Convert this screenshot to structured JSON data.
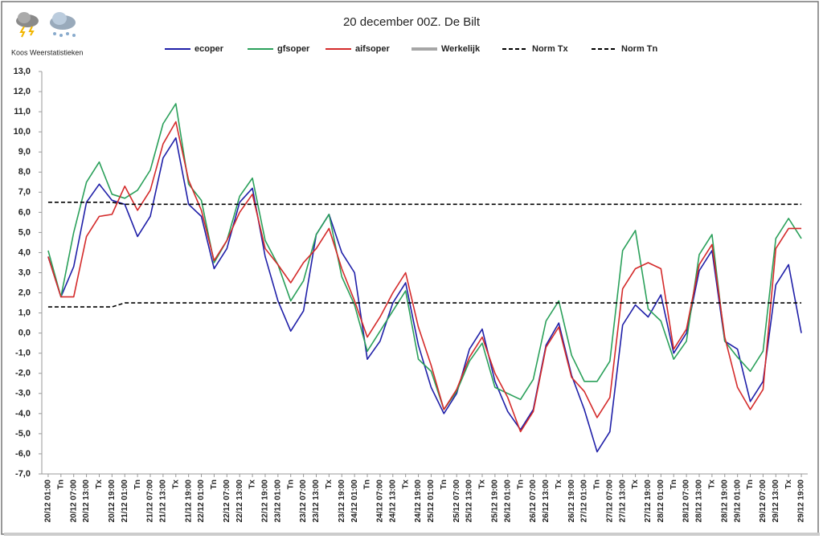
{
  "header": {
    "brand": "Koos Weerstatistieken"
  },
  "chart_data": {
    "type": "line",
    "title": "20 december 00Z. De Bilt",
    "categories": [
      "20/12 01:00",
      "Tn",
      "20/12 07:00",
      "20/12 13:00",
      "Tx",
      "20/12 19:00",
      "21/12 01:00",
      "Tn",
      "21/12 07:00",
      "21/12 13:00",
      "Tx",
      "21/12 19:00",
      "22/12 01:00",
      "Tn",
      "22/12 07:00",
      "22/12 13:00",
      "Tx",
      "22/12 19:00",
      "23/12 01:00",
      "Tn",
      "23/12 07:00",
      "23/12 13:00",
      "Tx",
      "23/12 19:00",
      "24/12 01:00",
      "Tn",
      "24/12 07:00",
      "24/12 13:00",
      "Tx",
      "24/12 19:00",
      "25/12 01:00",
      "Tn",
      "25/12 07:00",
      "25/12 13:00",
      "Tx",
      "25/12 19:00",
      "26/12 01:00",
      "Tn",
      "26/12 07:00",
      "26/12 13:00",
      "Tx",
      "26/12 19:00",
      "27/12 01:00",
      "Tn",
      "27/12 07:00",
      "27/12 13:00",
      "Tx",
      "27/12 19:00",
      "28/12 01:00",
      "Tn",
      "28/12 07:00",
      "28/12 13:00",
      "Tx",
      "28/12 19:00",
      "29/12 01:00",
      "Tn",
      "29/12 07:00",
      "29/12 13:00",
      "Tx",
      "29/12 19:00"
    ],
    "series": [
      {
        "name": "ecoper",
        "color": "#1f1fa8",
        "line_style": "solid",
        "values": [
          3.8,
          1.8,
          3.3,
          6.5,
          7.4,
          6.6,
          6.4,
          4.8,
          5.8,
          8.7,
          9.7,
          6.4,
          5.8,
          3.2,
          4.2,
          6.5,
          7.2,
          3.8,
          1.6,
          0.1,
          1.1,
          4.9,
          5.9,
          4.0,
          3.0,
          -1.3,
          -0.4,
          1.5,
          2.5,
          -0.6,
          -2.7,
          -4.0,
          -3.0,
          -0.8,
          0.2,
          -2.4,
          -3.9,
          -4.8,
          -3.8,
          -0.6,
          0.5,
          -2.1,
          -3.8,
          -5.9,
          -4.9,
          0.4,
          1.4,
          0.8,
          1.9,
          -1.0,
          0.0,
          3.1,
          4.1,
          -0.4,
          -0.8,
          -3.4,
          -2.4,
          2.4,
          3.4,
          0.0
        ]
      },
      {
        "name": "gfsoper",
        "color": "#2aa05a",
        "line_style": "solid",
        "values": [
          4.1,
          1.8,
          5.0,
          7.5,
          8.5,
          6.9,
          6.7,
          7.1,
          8.1,
          10.4,
          11.4,
          7.4,
          6.6,
          3.5,
          4.6,
          6.8,
          7.7,
          4.6,
          3.4,
          1.6,
          2.6,
          4.9,
          5.9,
          2.8,
          1.4,
          -0.9,
          0.1,
          1.1,
          2.1,
          -1.3,
          -1.9,
          -3.8,
          -2.9,
          -1.4,
          -0.5,
          -2.7,
          -3.0,
          -3.3,
          -2.3,
          0.6,
          1.6,
          -1.1,
          -2.4,
          -2.4,
          -1.4,
          4.1,
          5.1,
          1.2,
          0.6,
          -1.3,
          -0.4,
          3.9,
          4.9,
          -0.4,
          -1.2,
          -1.9,
          -0.9,
          4.7,
          5.7,
          4.7
        ]
      },
      {
        "name": "aifsoper",
        "color": "#d42a2a",
        "line_style": "solid",
        "values": [
          3.8,
          1.8,
          1.8,
          4.8,
          5.8,
          5.9,
          7.3,
          6.1,
          7.1,
          9.4,
          10.5,
          7.6,
          6.1,
          3.6,
          4.6,
          6.0,
          6.9,
          4.2,
          3.4,
          2.5,
          3.5,
          4.2,
          5.2,
          3.2,
          1.6,
          -0.2,
          0.8,
          2.0,
          3.0,
          0.3,
          -1.6,
          -3.8,
          -2.8,
          -1.2,
          -0.2,
          -2.0,
          -3.2,
          -4.9,
          -3.9,
          -0.7,
          0.3,
          -2.2,
          -2.9,
          -4.2,
          -3.2,
          2.2,
          3.2,
          3.5,
          3.2,
          -0.8,
          0.2,
          3.4,
          4.4,
          -0.2,
          -2.7,
          -3.8,
          -2.8,
          4.2,
          5.2,
          5.2
        ]
      },
      {
        "name": "Werkelijk",
        "color": "#a6a6a6",
        "line_style": "thick",
        "values": [
          null,
          null,
          null,
          null,
          null,
          null,
          null,
          null,
          null,
          null,
          null,
          null,
          null,
          null,
          null,
          null,
          null,
          null,
          null,
          null,
          null,
          null,
          null,
          null,
          null,
          null,
          null,
          null,
          null,
          null,
          null,
          null,
          null,
          null,
          null,
          null,
          null,
          null,
          null,
          null,
          null,
          null,
          null,
          null,
          null,
          null,
          null,
          null,
          null,
          null,
          null,
          null,
          null,
          null,
          null,
          null,
          null,
          null,
          null,
          null
        ]
      },
      {
        "name": "Norm Tx",
        "color": "#000000",
        "line_style": "dashed",
        "values": [
          6.5,
          6.5,
          6.5,
          6.5,
          6.5,
          6.5,
          6.4,
          6.4,
          6.4,
          6.4,
          6.4,
          6.4,
          6.4,
          6.4,
          6.4,
          6.4,
          6.4,
          6.4,
          6.4,
          6.4,
          6.4,
          6.4,
          6.4,
          6.4,
          6.4,
          6.4,
          6.4,
          6.4,
          6.4,
          6.4,
          6.4,
          6.4,
          6.4,
          6.4,
          6.4,
          6.4,
          6.4,
          6.4,
          6.4,
          6.4,
          6.4,
          6.4,
          6.4,
          6.4,
          6.4,
          6.4,
          6.4,
          6.4,
          6.4,
          6.4,
          6.4,
          6.4,
          6.4,
          6.4,
          6.4,
          6.4,
          6.4,
          6.4,
          6.4,
          6.4
        ]
      },
      {
        "name": "Norm Tn",
        "color": "#000000",
        "line_style": "dashed",
        "values": [
          1.3,
          1.3,
          1.3,
          1.3,
          1.3,
          1.3,
          1.5,
          1.5,
          1.5,
          1.5,
          1.5,
          1.5,
          1.5,
          1.5,
          1.5,
          1.5,
          1.5,
          1.5,
          1.5,
          1.5,
          1.5,
          1.5,
          1.5,
          1.5,
          1.5,
          1.5,
          1.5,
          1.5,
          1.5,
          1.5,
          1.5,
          1.5,
          1.5,
          1.5,
          1.5,
          1.5,
          1.5,
          1.5,
          1.5,
          1.5,
          1.5,
          1.5,
          1.5,
          1.5,
          1.5,
          1.5,
          1.5,
          1.5,
          1.5,
          1.5,
          1.5,
          1.5,
          1.5,
          1.5,
          1.5,
          1.5,
          1.5,
          1.5,
          1.5,
          1.5
        ]
      }
    ],
    "ylim": [
      -7,
      13
    ],
    "yticks": [
      {
        "value": -7,
        "label": "-7,0"
      },
      {
        "value": -6,
        "label": "-6,0"
      },
      {
        "value": -5,
        "label": "-5,0"
      },
      {
        "value": -4,
        "label": "-4,0"
      },
      {
        "value": -3,
        "label": "-3,0"
      },
      {
        "value": -2,
        "label": "-2,0"
      },
      {
        "value": -1,
        "label": "-1,0"
      },
      {
        "value": 0,
        "label": "0,0"
      },
      {
        "value": 1,
        "label": "1,0"
      },
      {
        "value": 2,
        "label": "2,0"
      },
      {
        "value": 3,
        "label": "3,0"
      },
      {
        "value": 4,
        "label": "4,0"
      },
      {
        "value": 5,
        "label": "5,0"
      },
      {
        "value": 6,
        "label": "6,0"
      },
      {
        "value": 7,
        "label": "7,0"
      },
      {
        "value": 8,
        "label": "8,0"
      },
      {
        "value": 9,
        "label": "9,0"
      },
      {
        "value": 10,
        "label": "10,0"
      },
      {
        "value": 11,
        "label": "11,0"
      },
      {
        "value": 12,
        "label": "12,0"
      },
      {
        "value": 13,
        "label": "13,0"
      }
    ],
    "grid": false,
    "legend": "top"
  }
}
